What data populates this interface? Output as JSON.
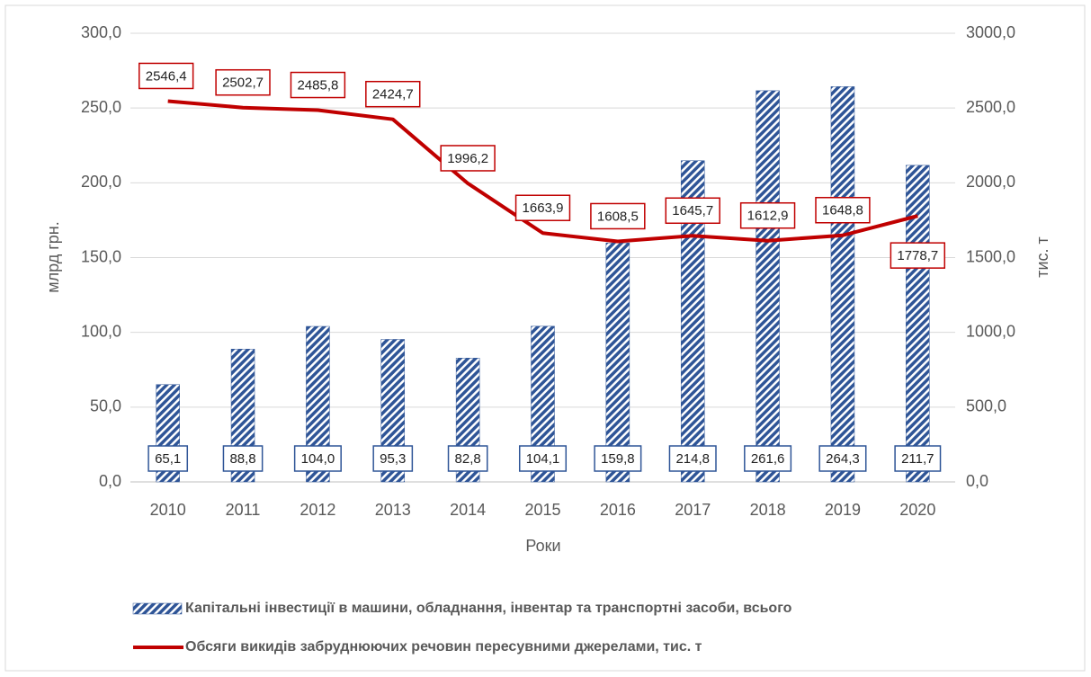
{
  "chart_data": {
    "type": "bar",
    "categories": [
      "2010",
      "2011",
      "2012",
      "2013",
      "2014",
      "2015",
      "2016",
      "2017",
      "2018",
      "2019",
      "2020"
    ],
    "series": [
      {
        "name": "Капітальні інвестиції в машини, обладнання, інвентар та транспортні засоби, всього",
        "type": "bar",
        "color": "#2f5597",
        "values": [
          65.1,
          88.8,
          104.0,
          95.3,
          82.8,
          104.1,
          159.8,
          214.8,
          261.6,
          264.3,
          211.7
        ],
        "value_labels": [
          "65,1",
          "88,8",
          "104,0",
          "95,3",
          "82,8",
          "104,1",
          "159,8",
          "214,8",
          "261,6",
          "264,3",
          "211,7"
        ]
      },
      {
        "name": "Обсяги викидів забруднюючих речовин пересувними джерелами, тис. т",
        "type": "line",
        "axis": "y2",
        "color": "#c00000",
        "values": [
          2546.4,
          2502.7,
          2485.8,
          2424.7,
          1996.2,
          1663.9,
          1608.5,
          1645.7,
          1612.9,
          1648.8,
          1778.7
        ],
        "value_labels": [
          "2546,4",
          "2502,7",
          "2485,8",
          "2424,7",
          "1996,2",
          "1663,9",
          "1608,5",
          "1645,7",
          "1612,9",
          "1648,8",
          "1778,7"
        ]
      }
    ],
    "y_label": "млрд грн.",
    "y2_label": "тис. т",
    "x_label": "Роки",
    "ylim": [
      0,
      300
    ],
    "yticks": [
      {
        "value": 0,
        "label": "0,0"
      },
      {
        "value": 50,
        "label": "50,0"
      },
      {
        "value": 100,
        "label": "100,0"
      },
      {
        "value": 150,
        "label": "150,0"
      },
      {
        "value": 200,
        "label": "200,0"
      },
      {
        "value": 250,
        "label": "250,0"
      },
      {
        "value": 300,
        "label": "300,0"
      }
    ],
    "y2lim": [
      0,
      3000
    ],
    "y2ticks": [
      {
        "value": 0,
        "label": "0,0"
      },
      {
        "value": 500,
        "label": "500,0"
      },
      {
        "value": 1000,
        "label": "1000,0"
      },
      {
        "value": 1500,
        "label": "1500,0"
      },
      {
        "value": 2000,
        "label": "2000,0"
      },
      {
        "value": 2500,
        "label": "2500,0"
      },
      {
        "value": 3000,
        "label": "3000,0"
      }
    ],
    "grid": true,
    "legend": "bottom"
  }
}
